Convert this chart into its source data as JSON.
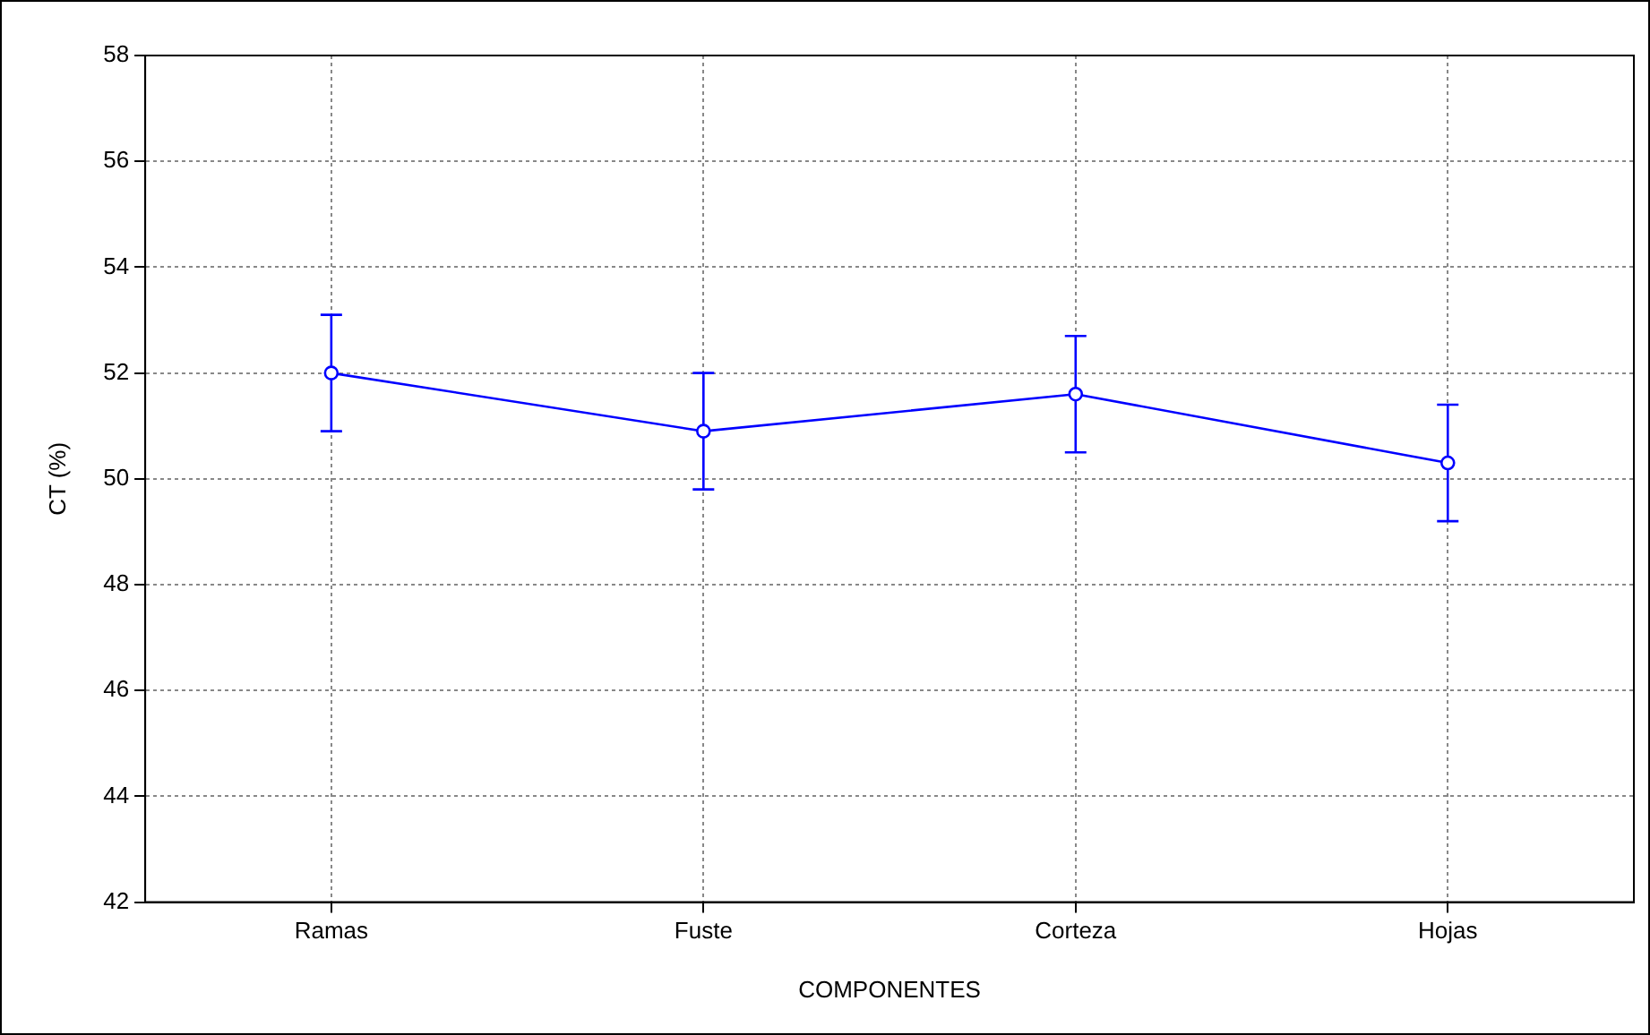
{
  "chart_data": {
    "type": "line",
    "xlabel": "COMPONENTES",
    "ylabel": "CT (%)",
    "categories": [
      "Ramas",
      "Fuste",
      "Corteza",
      "Hojas"
    ],
    "series": [
      {
        "color": "#0000ff",
        "values": [
          52.0,
          50.9,
          51.6,
          50.3
        ],
        "errors": [
          1.1,
          1.1,
          1.1,
          1.1
        ]
      }
    ],
    "ylim": [
      42,
      58
    ],
    "yticks": [
      42,
      44,
      46,
      48,
      50,
      52,
      54,
      56,
      58
    ],
    "grid": true,
    "legend": false,
    "marker": "circle",
    "line_style": "solid"
  }
}
